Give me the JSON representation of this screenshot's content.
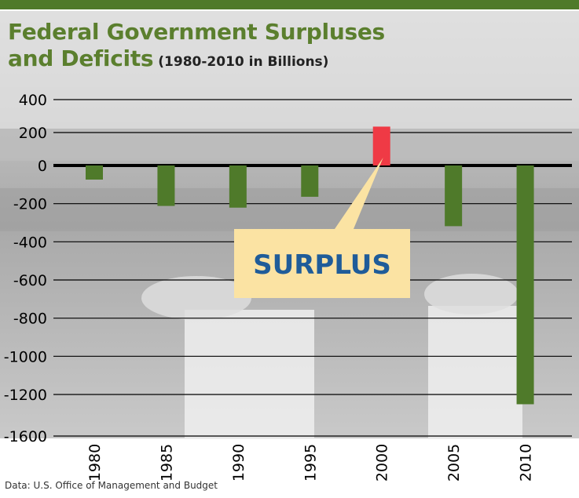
{
  "title_line1": "Federal Government Surpluses",
  "title_line2": "and Deficits",
  "subtitle": "(1980-2010 in Billions)",
  "source": "Data: U.S. Office of Management and Budget",
  "callout": "SURPLUS",
  "colors": {
    "deficit": "#4f7a2a",
    "surplus": "#ef3a45",
    "title": "#5b7f2e",
    "callout_fill": "#fbe3a3",
    "callout_text": "#1f5c99"
  },
  "chart_data": {
    "type": "bar",
    "categories": [
      "1980",
      "1985",
      "1990",
      "1995",
      "2000",
      "2005",
      "2010"
    ],
    "values": [
      -74,
      -212,
      -221,
      -164,
      236,
      -318,
      -1294
    ],
    "yticks": [
      400,
      200,
      0,
      -200,
      -400,
      -600,
      -800,
      -1000,
      -1200,
      -1600
    ],
    "ylim": [
      -1600,
      400
    ],
    "grid": true,
    "legend": "none"
  }
}
